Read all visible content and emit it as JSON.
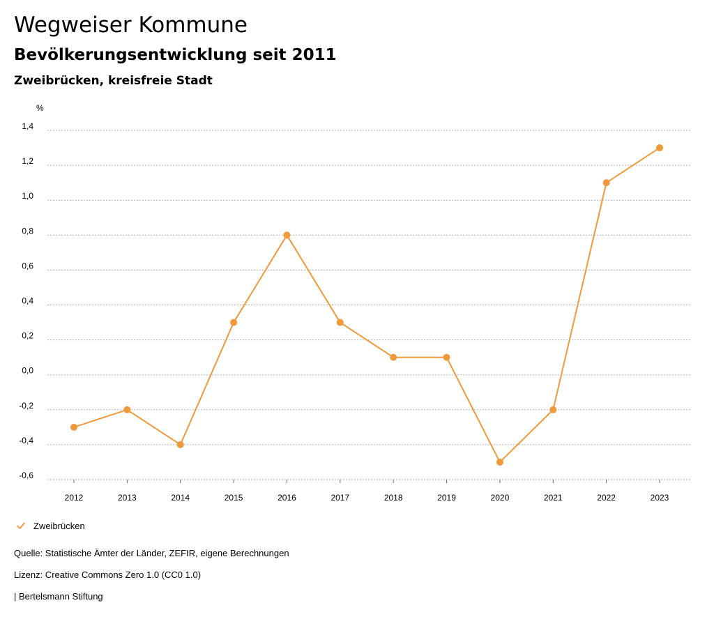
{
  "header": {
    "title": "Wegweiser Kommune",
    "subtitle": "Bevölkerungsentwicklung seit 2011",
    "region": "Zweibrücken, kreisfreie Stadt"
  },
  "chart_data": {
    "type": "line",
    "y_unit_label": "%",
    "categories": [
      "2012",
      "2013",
      "2014",
      "2015",
      "2016",
      "2017",
      "2018",
      "2019",
      "2020",
      "2021",
      "2022",
      "2023"
    ],
    "series": [
      {
        "name": "Zweibrücken",
        "color": "#f0993a",
        "values": [
          -0.3,
          -0.2,
          -0.4,
          0.3,
          0.8,
          0.3,
          0.1,
          0.1,
          -0.5,
          -0.2,
          1.1,
          1.3
        ]
      }
    ],
    "y_ticks": [
      1.4,
      1.2,
      1.0,
      0.8,
      0.6,
      0.4,
      0.2,
      0.0,
      -0.2,
      -0.4,
      -0.6
    ],
    "y_tick_labels": [
      "1,4",
      "1,2",
      "1,0",
      "0,8",
      "0,6",
      "0,4",
      "0,2",
      "0,0",
      "-0,2",
      "-0,4",
      "-0,6"
    ],
    "ylim": [
      -0.6,
      1.4
    ],
    "grid": true,
    "legend_position": "bottom-left"
  },
  "legend": {
    "label": "Zweibrücken",
    "icon": "check-icon"
  },
  "footer": {
    "source": "Quelle: Statistische Ämter der Länder, ZEFIR, eigene Berechnungen",
    "license": "Lizenz: Creative Commons Zero 1.0 (CC0 1.0)",
    "publisher": "| Bertelsmann Stiftung"
  }
}
